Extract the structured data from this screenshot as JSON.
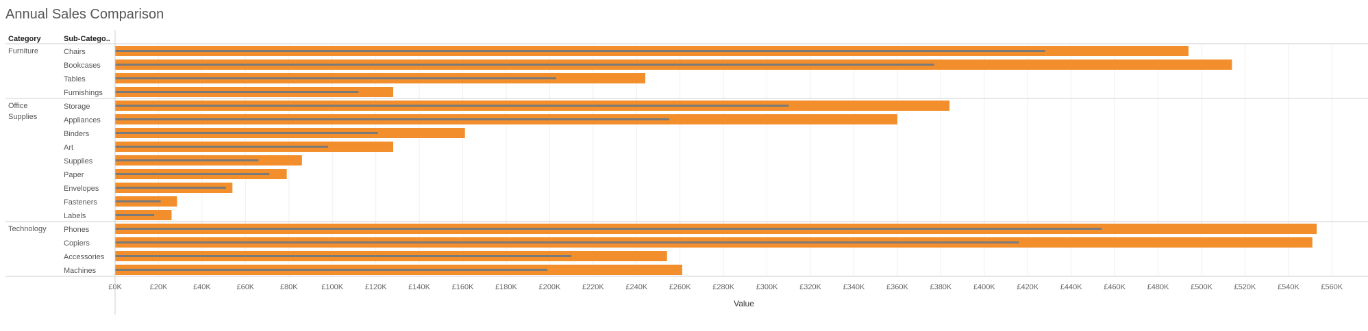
{
  "title": "Annual Sales Comparison",
  "headers": {
    "category": "Category",
    "subcategory": "Sub-Catego.."
  },
  "colors": {
    "bar": "#f28e2b",
    "reference": "#7a7a7a",
    "grid": "#efefef",
    "divider": "#cfcfcf"
  },
  "chart_data": {
    "type": "bar",
    "orientation": "horizontal",
    "xlabel": "Value",
    "xlim": [
      0,
      580000
    ],
    "ticks": [
      "£0K",
      "£20K",
      "£40K",
      "£60K",
      "£80K",
      "£100K",
      "£120K",
      "£140K",
      "£160K",
      "£180K",
      "£200K",
      "£220K",
      "£240K",
      "£260K",
      "£280K",
      "£300K",
      "£320K",
      "£340K",
      "£360K",
      "£380K",
      "£400K",
      "£420K",
      "£440K",
      "£460K",
      "£480K",
      "£500K",
      "£520K",
      "£540K",
      "£560K"
    ],
    "grid": true,
    "groups": [
      {
        "category": "Furniture",
        "items": [
          {
            "name": "Chairs",
            "bar": 494000,
            "line": 428000
          },
          {
            "name": "Bookcases",
            "bar": 514000,
            "line": 377000
          },
          {
            "name": "Tables",
            "bar": 244000,
            "line": 203000
          },
          {
            "name": "Furnishings",
            "bar": 128000,
            "line": 112000
          }
        ]
      },
      {
        "category": "Office Supplies",
        "items": [
          {
            "name": "Storage",
            "bar": 384000,
            "line": 310000
          },
          {
            "name": "Appliances",
            "bar": 360000,
            "line": 255000
          },
          {
            "name": "Binders",
            "bar": 161000,
            "line": 121000
          },
          {
            "name": "Art",
            "bar": 128000,
            "line": 98000
          },
          {
            "name": "Supplies",
            "bar": 86000,
            "line": 66000
          },
          {
            "name": "Paper",
            "bar": 79000,
            "line": 71000
          },
          {
            "name": "Envelopes",
            "bar": 54000,
            "line": 51000
          },
          {
            "name": "Fasteners",
            "bar": 28500,
            "line": 21000
          },
          {
            "name": "Labels",
            "bar": 26000,
            "line": 18000
          }
        ]
      },
      {
        "category": "Technology",
        "items": [
          {
            "name": "Phones",
            "bar": 553000,
            "line": 454000
          },
          {
            "name": "Copiers",
            "bar": 551000,
            "line": 416000
          },
          {
            "name": "Accessories",
            "bar": 254000,
            "line": 210000
          },
          {
            "name": "Machines",
            "bar": 261000,
            "line": 199000
          }
        ]
      }
    ]
  }
}
